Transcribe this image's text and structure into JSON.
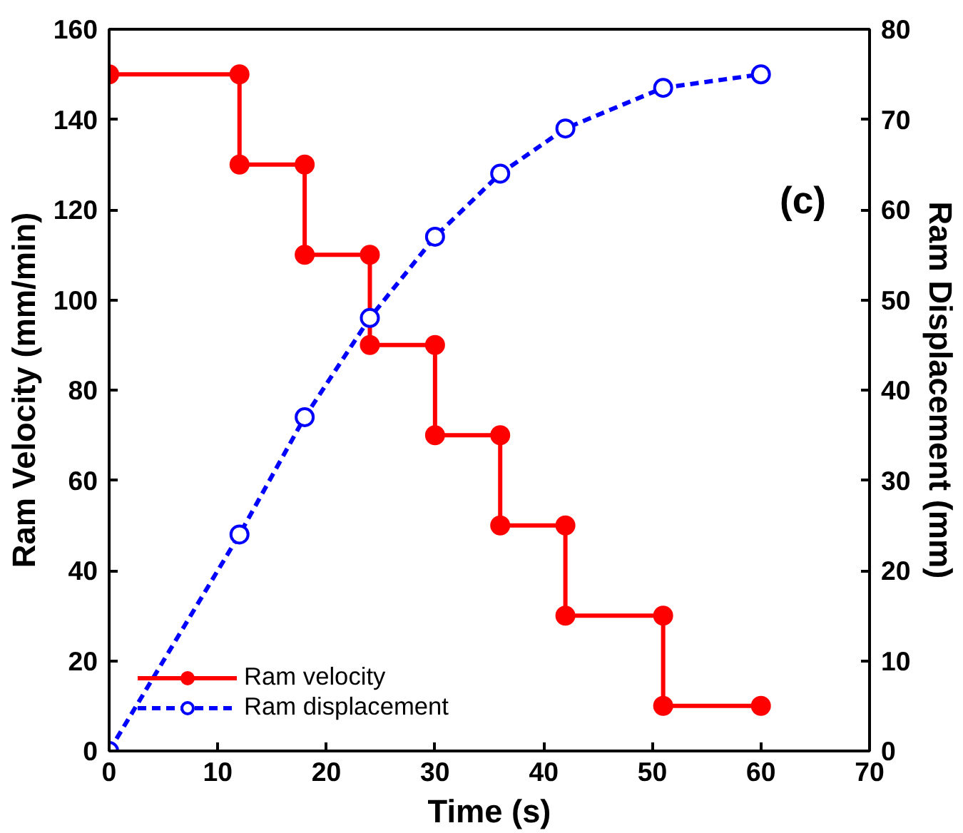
{
  "chart_data": {
    "type": "line",
    "xlabel": "Time (s)",
    "ylabel": "Ram Velocity (mm/min)",
    "y2label": "Ram Displacement (mm)",
    "xlim": [
      0,
      70
    ],
    "xticks": [
      0,
      10,
      20,
      30,
      40,
      50,
      60,
      70
    ],
    "ylim": [
      0,
      160
    ],
    "yticks": [
      0,
      20,
      40,
      60,
      80,
      100,
      120,
      140,
      160
    ],
    "y2lim": [
      0,
      80
    ],
    "y2ticks": [
      0,
      10,
      20,
      30,
      40,
      50,
      60,
      70,
      80
    ],
    "grid": false,
    "legend": "bottom left",
    "annotations": [
      "(c)"
    ],
    "series": [
      {
        "name": "Ram velocity",
        "color": "#ff0000",
        "marker": "circle",
        "line_style": "solid",
        "x": [
          0,
          12,
          12,
          18,
          18,
          24,
          24,
          30,
          30,
          36,
          36,
          42,
          42,
          51,
          51,
          60
        ],
        "values": [
          150,
          150,
          130,
          130,
          110,
          110,
          90,
          90,
          70,
          70,
          50,
          50,
          30,
          30,
          10,
          10
        ]
      },
      {
        "name": "Ram displacement",
        "color": "#0000ff",
        "marker": "circle_open",
        "line_style": "dashed",
        "axis": "y2",
        "x": [
          0,
          12,
          18,
          24,
          30,
          36,
          42,
          51,
          60
        ],
        "values": [
          0,
          24,
          37,
          48,
          57,
          64,
          69,
          73.5,
          75
        ]
      }
    ]
  }
}
